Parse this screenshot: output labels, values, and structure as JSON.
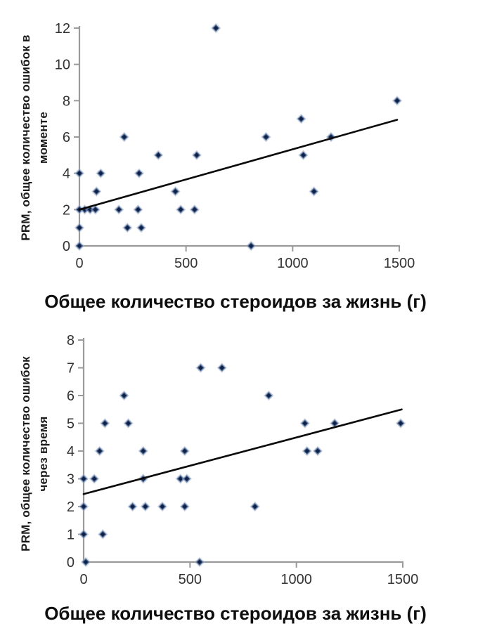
{
  "style": {
    "background": "#ffffff",
    "axis_color": "#9a9a9a",
    "tick_text_color": "#333333",
    "trend_color": "#0a0a0a",
    "marker_halo": "#9aabc8",
    "marker_mid": "#46648f",
    "marker_core": "#101f45"
  },
  "chart_data": [
    {
      "type": "scatter",
      "title": "",
      "xlabel": "Общее количество стероидов за жизнь (г)",
      "ylabel": "PRM, общее количество ошибок в моменте",
      "ylabel_lines": [
        "PRM, общее количество ошибок в",
        "моменте"
      ],
      "xlim": [
        0,
        1500
      ],
      "ylim": [
        0,
        12
      ],
      "x_ticks": [
        0,
        500,
        1000,
        1500
      ],
      "y_ticks": [
        0,
        2,
        4,
        6,
        8,
        10,
        12
      ],
      "grid": false,
      "legend": "none",
      "marker": "diamond",
      "points": [
        [
          0,
          0
        ],
        [
          805,
          0
        ],
        [
          0,
          1
        ],
        [
          225,
          1
        ],
        [
          290,
          1
        ],
        [
          0,
          2
        ],
        [
          25,
          2
        ],
        [
          50,
          2
        ],
        [
          75,
          2
        ],
        [
          185,
          2
        ],
        [
          275,
          2
        ],
        [
          475,
          2
        ],
        [
          540,
          2
        ],
        [
          80,
          3
        ],
        [
          450,
          3
        ],
        [
          1100,
          3
        ],
        [
          0,
          4
        ],
        [
          100,
          4
        ],
        [
          280,
          4
        ],
        [
          370,
          5
        ],
        [
          550,
          5
        ],
        [
          1050,
          5
        ],
        [
          210,
          6
        ],
        [
          875,
          6
        ],
        [
          1180,
          6
        ],
        [
          1040,
          7
        ],
        [
          1490,
          8
        ],
        [
          640,
          12
        ]
      ],
      "trendline": {
        "from": [
          0,
          2.0
        ],
        "to": [
          1490,
          6.95
        ]
      }
    },
    {
      "type": "scatter",
      "title": "",
      "xlabel": "Общее количество стероидов за жизнь (г)",
      "ylabel": "PRM, общее количество ошибок через время",
      "ylabel_lines": [
        "PRM, общее количество ошибок",
        "через время"
      ],
      "xlim": [
        0,
        1500
      ],
      "ylim": [
        0,
        8
      ],
      "x_ticks": [
        0,
        500,
        1000,
        1500
      ],
      "y_ticks": [
        0,
        1,
        2,
        3,
        4,
        5,
        6,
        7,
        8
      ],
      "grid": false,
      "legend": "none",
      "marker": "diamond",
      "points": [
        [
          10,
          0
        ],
        [
          545,
          0
        ],
        [
          0,
          1
        ],
        [
          90,
          1
        ],
        [
          0,
          2
        ],
        [
          230,
          2
        ],
        [
          290,
          2
        ],
        [
          370,
          2
        ],
        [
          475,
          2
        ],
        [
          805,
          2
        ],
        [
          0,
          3
        ],
        [
          50,
          3
        ],
        [
          280,
          3
        ],
        [
          455,
          3
        ],
        [
          485,
          3
        ],
        [
          75,
          4
        ],
        [
          280,
          4
        ],
        [
          475,
          4
        ],
        [
          1050,
          4
        ],
        [
          1100,
          4
        ],
        [
          100,
          5
        ],
        [
          210,
          5
        ],
        [
          1040,
          5
        ],
        [
          1180,
          5
        ],
        [
          1490,
          5
        ],
        [
          190,
          6
        ],
        [
          870,
          6
        ],
        [
          550,
          7
        ],
        [
          650,
          7
        ]
      ],
      "trendline": {
        "from": [
          0,
          2.45
        ],
        "to": [
          1495,
          5.5
        ]
      }
    }
  ]
}
